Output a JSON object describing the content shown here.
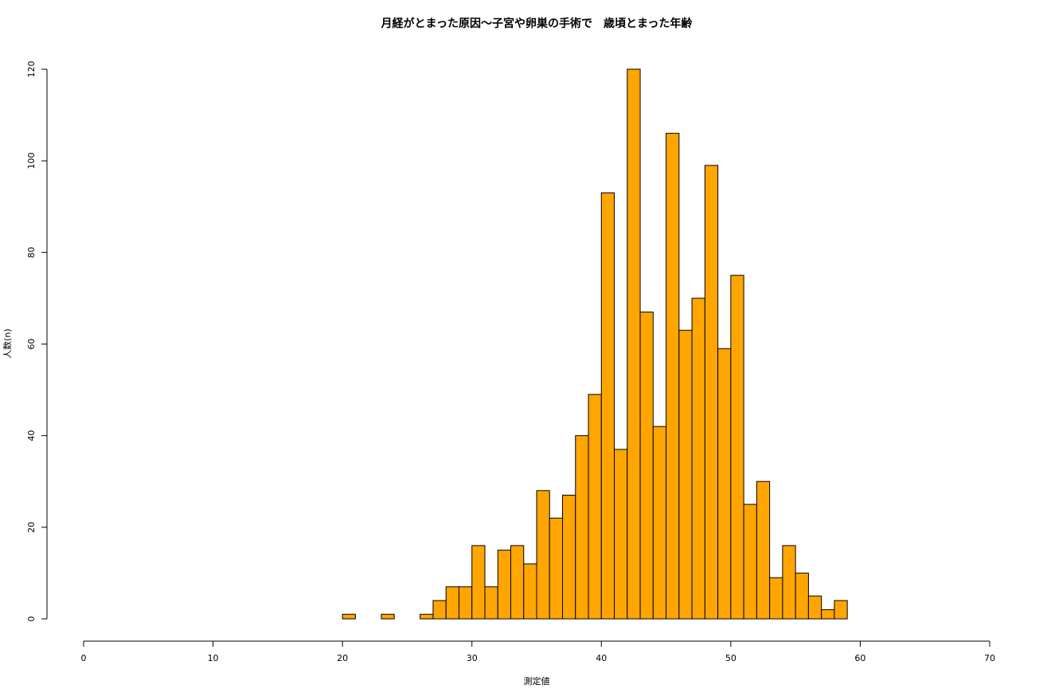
{
  "chart_data": {
    "type": "histogram",
    "title": "月経がとまった原因〜子宮や卵巣の手術で　歳頃とまった年齢",
    "x_label": "測定値",
    "y_label": "人数(n)",
    "bins": [
      20,
      21,
      22,
      23,
      24,
      25,
      26,
      27,
      28,
      29,
      30,
      31,
      32,
      33,
      34,
      35,
      36,
      37,
      38,
      39,
      40,
      41,
      42,
      43,
      44,
      45,
      46,
      47,
      48,
      49,
      50,
      51,
      52,
      53,
      54,
      55,
      56,
      57,
      58,
      59
    ],
    "values": [
      1,
      0,
      0,
      1,
      0,
      0,
      1,
      4,
      7,
      7,
      16,
      7,
      15,
      16,
      12,
      28,
      22,
      27,
      40,
      49,
      93,
      37,
      120,
      67,
      42,
      106,
      63,
      70,
      99,
      59,
      75,
      25,
      30,
      9,
      16,
      10,
      5,
      2,
      4
    ],
    "color": "#ffa500",
    "xlim": [
      0,
      70
    ],
    "xticks": [
      0,
      10,
      20,
      30,
      40,
      50,
      60,
      70
    ],
    "ylim": [
      0,
      120
    ],
    "yticks": [
      0,
      20,
      40,
      60,
      80,
      100,
      120
    ]
  }
}
